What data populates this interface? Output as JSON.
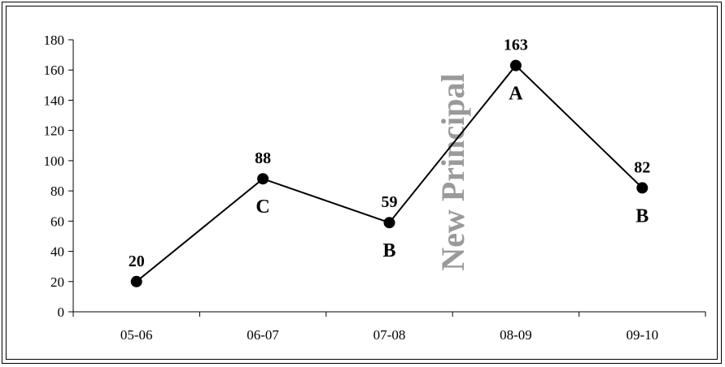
{
  "chart_data": {
    "type": "line",
    "categories": [
      "05-06",
      "06-07",
      "07-08",
      "08-09",
      "09-10"
    ],
    "values": [
      20,
      88,
      59,
      163,
      82
    ],
    "point_labels": [
      "",
      "C",
      "B",
      "A",
      "B"
    ],
    "y_ticks": [
      "0",
      "20",
      "40",
      "60",
      "80",
      "100",
      "120",
      "140",
      "160",
      "180"
    ],
    "ylim": [
      0,
      180
    ],
    "annotation": "New Principal",
    "title": "",
    "xlabel": "",
    "ylabel": "",
    "grid": false,
    "legend": "none",
    "line_color": "#000000",
    "annotation_color": "#9a9a9a"
  }
}
